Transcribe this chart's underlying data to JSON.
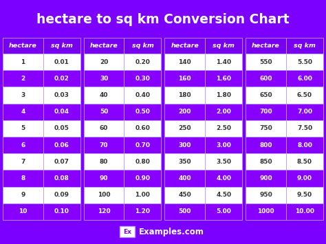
{
  "title": "hectare to sq km Conversion Chart",
  "bg_color": "#7B00FF",
  "purple_row": "#8800FF",
  "white_row": "#FFFFFF",
  "header_row": "#7700EE",
  "border_color": "#BB99FF",
  "columns": [
    {
      "hectare": [
        "1",
        "2",
        "3",
        "4",
        "5",
        "6",
        "7",
        "8",
        "9",
        "10"
      ],
      "sq_km": [
        "0.01",
        "0.02",
        "0.03",
        "0.04",
        "0.05",
        "0.06",
        "0.07",
        "0.08",
        "0.09",
        "0.10"
      ]
    },
    {
      "hectare": [
        "20",
        "30",
        "40",
        "50",
        "60",
        "70",
        "80",
        "90",
        "100",
        "120"
      ],
      "sq_km": [
        "0.20",
        "0.30",
        "0.40",
        "0.50",
        "0.60",
        "0.70",
        "0.80",
        "0.90",
        "1.00",
        "1.20"
      ]
    },
    {
      "hectare": [
        "140",
        "160",
        "180",
        "200",
        "250",
        "300",
        "350",
        "400",
        "450",
        "500"
      ],
      "sq_km": [
        "1.40",
        "1.60",
        "1.80",
        "2.00",
        "2.50",
        "3.00",
        "3.50",
        "4.00",
        "4.50",
        "5.00"
      ]
    },
    {
      "hectare": [
        "550",
        "600",
        "650",
        "700",
        "750",
        "800",
        "850",
        "900",
        "950",
        "1000"
      ],
      "sq_km": [
        "5.50",
        "6.00",
        "6.50",
        "7.00",
        "7.50",
        "8.00",
        "8.50",
        "9.00",
        "9.50",
        "10.00"
      ]
    }
  ],
  "footer_ex": "Ex",
  "footer_text": "Examples.com",
  "title_fontsize": 13.5,
  "header_fontsize": 6.8,
  "cell_fontsize": 6.5,
  "footer_fontsize": 8.5
}
